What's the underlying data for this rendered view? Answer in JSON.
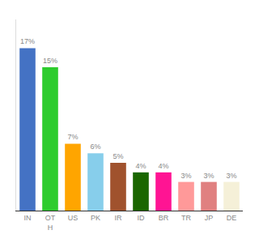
{
  "chart_data": {
    "type": "bar",
    "categories": [
      "IN",
      "OT\nH",
      "US",
      "PK",
      "IR",
      "ID",
      "BR",
      "TR",
      "JP",
      "DE"
    ],
    "values": [
      17,
      15,
      7,
      6,
      5,
      4,
      4,
      3,
      3,
      3
    ],
    "value_labels": [
      "17%",
      "15%",
      "7%",
      "6%",
      "5%",
      "4%",
      "4%",
      "3%",
      "3%",
      "3%"
    ],
    "colors": [
      "#4472c4",
      "#2ecc2e",
      "#ffa500",
      "#87ceeb",
      "#a0522d",
      "#1a6600",
      "#ff1493",
      "#ff9999",
      "#e08080",
      "#f5f0d8"
    ],
    "ylim": [
      0,
      20
    ],
    "data_labels": true,
    "tick_labels": "x",
    "grid": false
  }
}
